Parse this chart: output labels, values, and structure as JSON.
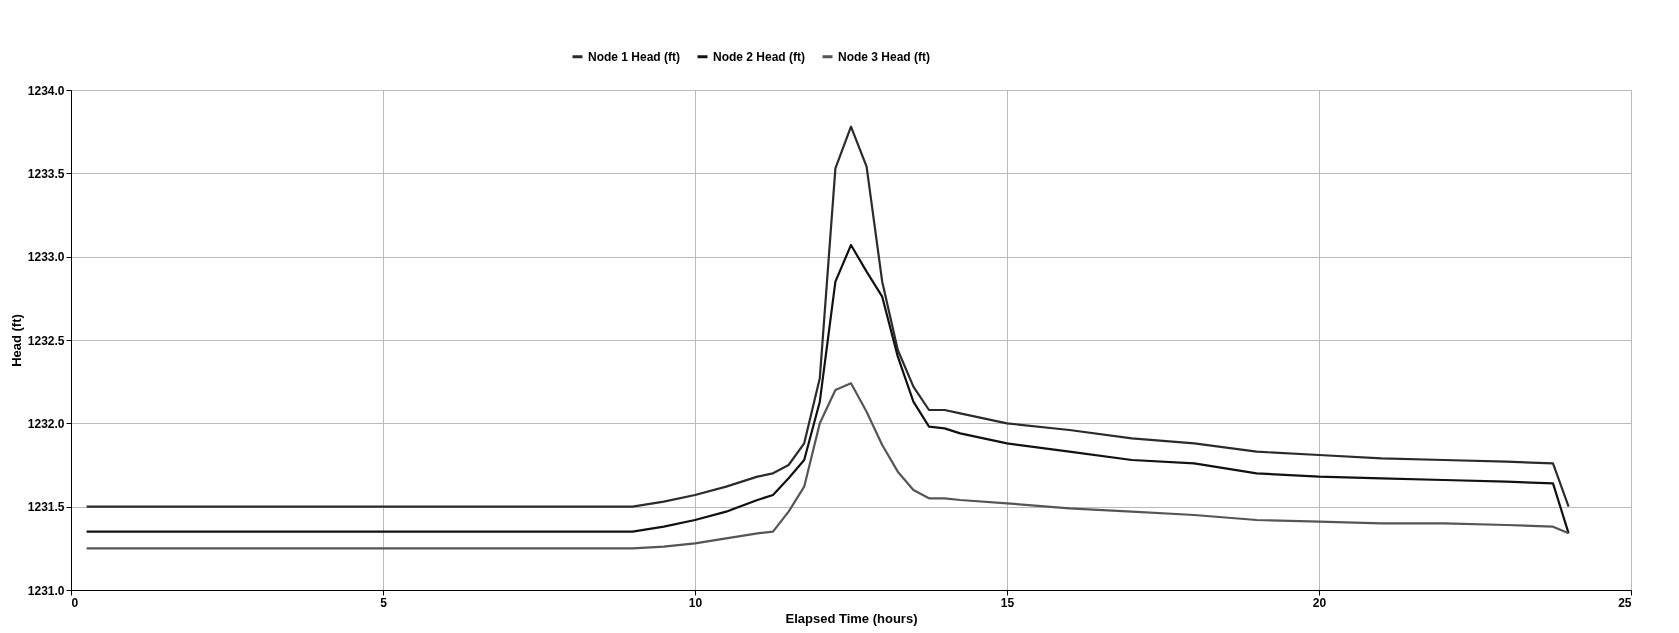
{
  "chart_data": {
    "type": "line",
    "xlabel": "Elapsed Time (hours)",
    "ylabel": "Head (ft)",
    "x": [
      0.25,
      9,
      9.5,
      10,
      10.5,
      11,
      11.25,
      11.5,
      11.75,
      12,
      12.25,
      12.5,
      12.75,
      13,
      13.25,
      13.5,
      13.75,
      14,
      14.25,
      15,
      16,
      17,
      18,
      19,
      20,
      21,
      22,
      23,
      23.75,
      24
    ],
    "series": [
      {
        "name": "Node 1 Head (ft)",
        "color": "#2b2b2b",
        "values": [
          1231.5,
          1231.5,
          1231.53,
          1231.57,
          1231.62,
          1231.68,
          1231.7,
          1231.75,
          1231.88,
          1232.27,
          1233.53,
          1233.78,
          1233.54,
          1232.85,
          1232.44,
          1232.22,
          1232.08,
          1232.08,
          1232.06,
          1232.0,
          1231.96,
          1231.91,
          1231.88,
          1231.83,
          1231.81,
          1231.79,
          1231.78,
          1231.77,
          1231.76,
          1231.5
        ]
      },
      {
        "name": "Node 2 Head (ft)",
        "color": "#111111",
        "values": [
          1231.35,
          1231.35,
          1231.38,
          1231.42,
          1231.47,
          1231.54,
          1231.57,
          1231.67,
          1231.78,
          1232.13,
          1232.85,
          1233.07,
          1232.91,
          1232.76,
          1232.4,
          1232.13,
          1231.98,
          1231.97,
          1231.94,
          1231.88,
          1231.83,
          1231.78,
          1231.76,
          1231.7,
          1231.68,
          1231.67,
          1231.66,
          1231.65,
          1231.64,
          1231.34
        ]
      },
      {
        "name": "Node 3 Head (ft)",
        "color": "#555555",
        "values": [
          1231.25,
          1231.25,
          1231.26,
          1231.28,
          1231.31,
          1231.34,
          1231.35,
          1231.47,
          1231.62,
          1232.0,
          1232.2,
          1232.24,
          1232.07,
          1231.87,
          1231.71,
          1231.6,
          1231.55,
          1231.55,
          1231.54,
          1231.52,
          1231.49,
          1231.47,
          1231.45,
          1231.42,
          1231.41,
          1231.4,
          1231.4,
          1231.39,
          1231.38,
          1231.34
        ]
      }
    ],
    "xlim": [
      0,
      25
    ],
    "xticks": [
      0,
      5,
      10,
      15,
      20,
      25
    ],
    "ylim": [
      1231,
      1234
    ],
    "yticks": [
      {
        "value": 1231,
        "label": "1231.0"
      },
      {
        "value": 1231.5,
        "label": "1231.5"
      },
      {
        "value": 1232,
        "label": "1232.0"
      },
      {
        "value": 1232.5,
        "label": "1232.5"
      },
      {
        "value": 1233,
        "label": "1233.0"
      },
      {
        "value": 1233.5,
        "label": "1233.5"
      },
      {
        "value": 1234,
        "label": "1234.0"
      }
    ],
    "grid": true,
    "legend": "top",
    "marker": "none",
    "line_style": "solid"
  }
}
